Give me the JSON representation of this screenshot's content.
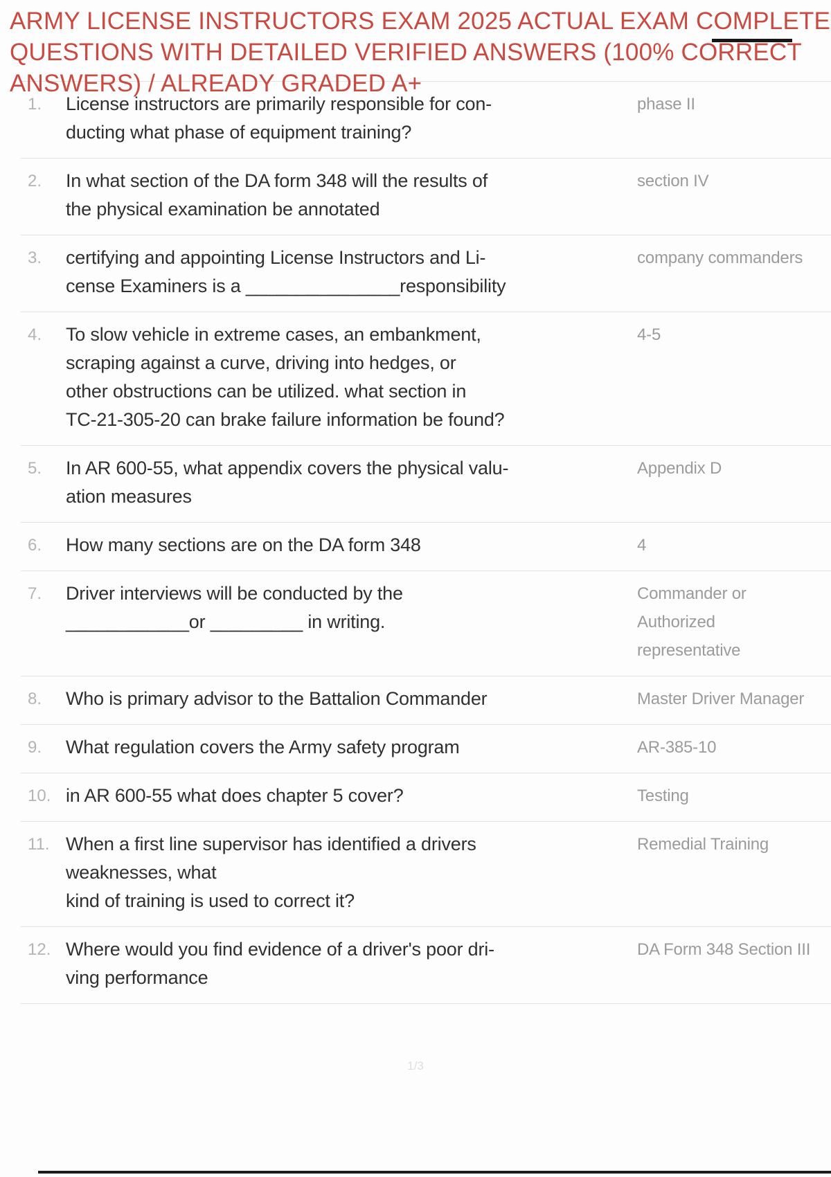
{
  "title": {
    "lines": [
      "ARMY LICENSE INSTRUCTORS EXAM 2025 ACTUAL EXAM COMPLETE",
      "QUESTIONS WITH DETAILED VERIFIED ANSWERS (100% CORRECT",
      "ANSWERS) / ALREADY GRADED A+"
    ]
  },
  "questions": [
    {
      "num": "1.",
      "question": "License instructors are primarily responsible for con-\nducting what phase of equipment training?",
      "answer": "phase II"
    },
    {
      "num": "2.",
      "question": "In what section of the DA form 348 will the results of\nthe physical examination be annotated",
      "answer": "section IV"
    },
    {
      "num": "3.",
      "question": "certifying and appointing License Instructors and Li-\ncense Examiners is a _______________responsibility",
      "answer": "company commanders"
    },
    {
      "num": "4.",
      "question": "To slow vehicle in extreme cases, an embankment,\nscraping against a curve, driving into hedges, or\nother obstructions can be utilized. what section in\nTC-21-305-20 can brake failure information be found?",
      "answer": "4-5"
    },
    {
      "num": "5.",
      "question": "In AR 600-55, what appendix covers the physical valu-\nation measures",
      "answer": "Appendix D"
    },
    {
      "num": "6.",
      "question": "How many sections are on the DA form 348",
      "answer": "4"
    },
    {
      "num": "7.",
      "question": "Driver interviews will be conducted by the\n____________or _________ in writing.",
      "answer": "Commander or Authorized\nrepresentative"
    },
    {
      "num": "8.",
      "question": "Who is primary advisor to the Battalion Commander",
      "answer": "Master Driver Manager"
    },
    {
      "num": "9.",
      "question": "What regulation covers the Army safety program",
      "answer": "AR-385-10"
    },
    {
      "num": "10.",
      "question": "in AR 600-55 what does chapter 5 cover?",
      "answer": "Testing"
    },
    {
      "num": "11.",
      "question": "When a first line supervisor has identified a drivers\nweaknesses, what\nkind of training is used to correct it?",
      "answer": "Remedial Training"
    },
    {
      "num": "12.",
      "question": "Where would you find evidence of a driver's poor dri-\nving performance",
      "answer": "DA Form 348 Section III"
    }
  ],
  "footer": {
    "page_indicator": "1/3"
  },
  "colors": {
    "title_red": "#ca4a41",
    "question_text": "#303030",
    "answer_text": "#9b9b9b",
    "number_text": "#b4b4b4",
    "separator": "#e2e2e2",
    "rule_black": "#161616",
    "background": "#fdfdfd"
  }
}
